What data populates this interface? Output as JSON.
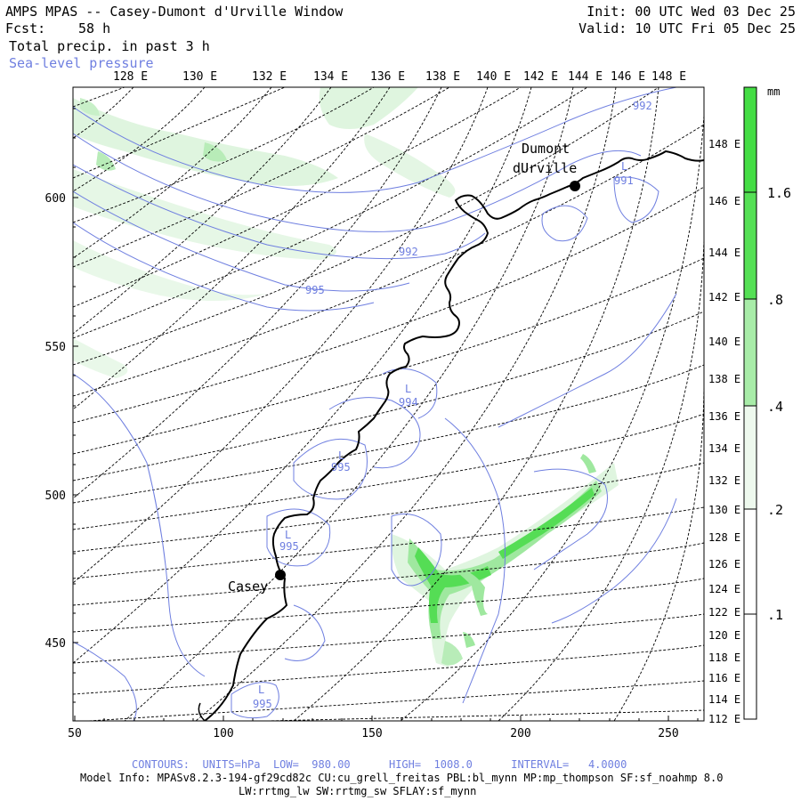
{
  "header": {
    "title": "AMPS MPAS -- Casey-Dumont d'Urville Window",
    "fcst_label": "Fcst:",
    "fcst_value": "58 h",
    "field": "Total precip. in past 3 h",
    "overlay": "Sea-level pressure",
    "init": "Init: 00 UTC Wed 03 Dec 25",
    "valid": "Valid: 10 UTC Fri 05 Dec 25"
  },
  "top_lon_labels": [
    "128 E",
    "130 E",
    "132 E",
    "134 E",
    "136 E",
    "138 E",
    "140 E",
    "142 E",
    "144 E",
    "146 E",
    "148 E"
  ],
  "left_y_labels": [
    "600",
    "550",
    "500",
    "450"
  ],
  "bottom_x_labels": [
    "50",
    "100",
    "150",
    "200",
    "250"
  ],
  "right_lat_labels": [
    "148 E",
    "146 E",
    "144 E",
    "142 E",
    "140 E",
    "138 E",
    "136 E",
    "134 E",
    "132 E",
    "130 E",
    "128 E",
    "126 E",
    "124 E",
    "122 E",
    "120 E",
    "118 E",
    "116 E",
    "114 E",
    "112 E"
  ],
  "colorbar": {
    "unit": "mm",
    "labels": [
      "1.6",
      ".8",
      ".4",
      ".2",
      ".1"
    ],
    "levels": [
      {
        "value": 1.6,
        "color": "#44dd44"
      },
      {
        "value": 0.8,
        "color": "#88e888"
      },
      {
        "value": 0.4,
        "color": "#c8f2c8"
      },
      {
        "value": 0.2,
        "color": "#eef9ee"
      },
      {
        "value": 0.1,
        "color": "#ffffff"
      }
    ]
  },
  "stations": [
    {
      "name_line1": "Dumont",
      "name_line2": "dUrville"
    },
    {
      "name_line1": "Casey"
    }
  ],
  "pressure_labels": [
    "992",
    "991",
    "992",
    "995",
    "994",
    "995",
    "995",
    "995"
  ],
  "low_marker": "L",
  "footer": {
    "contours": "CONTOURS:  UNITS=hPa  LOW=  980.00      HIGH=  1008.0      INTERVAL=   4.0000",
    "model_info": "Model Info: MPASv8.2.3-194-gf29cd82c CU:cu_grell_freitas PBL:bl_mynn MP:mp_thompson SF:sf_noahmp 8.0",
    "physics": "LW:rrtmg_lw SW:rrtmg_sw SFLAY:sf_mynn"
  },
  "colors": {
    "contour": "#6f7fe0",
    "grid": "#000000",
    "coast": "#000000",
    "precip_light": "#dff5df",
    "precip_mid": "#9fe89f",
    "precip_strong": "#55dd55"
  }
}
